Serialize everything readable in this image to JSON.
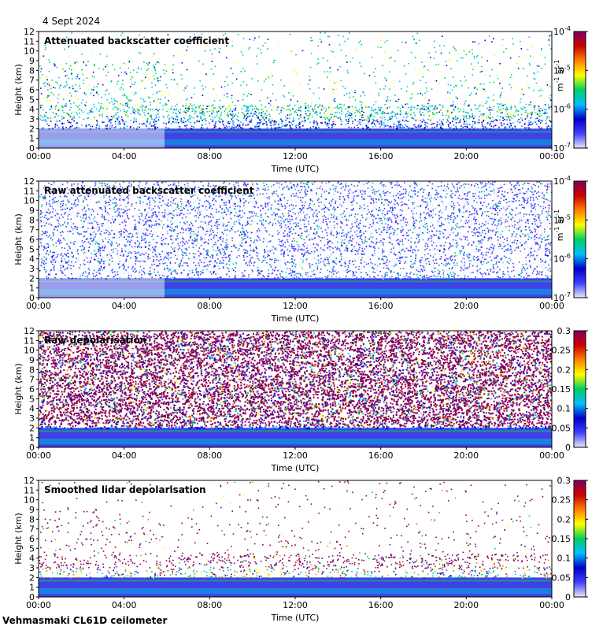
{
  "header": {
    "date": "4 Sept 2024"
  },
  "footer": {
    "site": "Vehmasmaki CL61D ceilometer"
  },
  "chart_data": [
    {
      "type": "heatmap",
      "title": "Attenuated backscatter coefficient",
      "xlabel": "Time (UTC)",
      "ylabel": "Height (km)",
      "x_ticks": [
        "00:00",
        "04:00",
        "08:00",
        "12:00",
        "16:00",
        "20:00",
        "00:00"
      ],
      "y_ticks": [
        "0",
        "1",
        "2",
        "3",
        "4",
        "5",
        "6",
        "7",
        "8",
        "9",
        "10",
        "11",
        "12"
      ],
      "ylim": [
        0,
        12
      ],
      "colorbar": {
        "scale": "log",
        "range": [
          1e-07,
          0.0001
        ],
        "tick_labels": [
          {
            "base": "10",
            "exp": "-7"
          },
          {
            "base": "10",
            "exp": "-6"
          },
          {
            "base": "10",
            "exp": "-5"
          },
          {
            "base": "10",
            "exp": "-4"
          }
        ],
        "unit": {
          "m_exp": "-1",
          "sr_exp": "-1"
        }
      },
      "colormap": [
        "#e8e8f8",
        "#4040ff",
        "#0000cc",
        "#00c0ff",
        "#00d060",
        "#ffff00",
        "#ff8000",
        "#cc0000",
        "#800060"
      ],
      "features": {
        "low_layer_km": [
          0.3,
          2.0
        ],
        "signal_density": "sparse",
        "max_height_km": 12
      }
    },
    {
      "type": "heatmap",
      "title": "Raw attenuated backscatter coefficient",
      "xlabel": "Time (UTC)",
      "ylabel": "Height (km)",
      "x_ticks": [
        "00:00",
        "04:00",
        "08:00",
        "12:00",
        "16:00",
        "20:00",
        "00:00"
      ],
      "y_ticks": [
        "0",
        "1",
        "2",
        "3",
        "4",
        "5",
        "6",
        "7",
        "8",
        "9",
        "10",
        "11",
        "12"
      ],
      "ylim": [
        0,
        12
      ],
      "colorbar": {
        "scale": "log",
        "range": [
          1e-07,
          0.0001
        ],
        "tick_labels": [
          {
            "base": "10",
            "exp": "-7"
          },
          {
            "base": "10",
            "exp": "-6"
          },
          {
            "base": "10",
            "exp": "-5"
          },
          {
            "base": "10",
            "exp": "-4"
          }
        ],
        "unit": {
          "m_exp": "-1",
          "sr_exp": "-1"
        }
      },
      "colormap": [
        "#e8e8f8",
        "#4040ff",
        "#0000cc",
        "#00c0ff",
        "#00d060",
        "#ffff00",
        "#ff8000",
        "#cc0000",
        "#800060"
      ],
      "features": {
        "low_layer_km": [
          0.3,
          2.0
        ],
        "signal_density": "dense",
        "max_height_km": 12
      }
    },
    {
      "type": "heatmap",
      "title": "Raw depolarisation",
      "xlabel": "Time (UTC)",
      "ylabel": "Height (km)",
      "x_ticks": [
        "00:00",
        "04:00",
        "08:00",
        "12:00",
        "16:00",
        "20:00",
        "00:00"
      ],
      "y_ticks": [
        "0",
        "1",
        "2",
        "3",
        "4",
        "5",
        "6",
        "7",
        "8",
        "9",
        "10",
        "11",
        "12"
      ],
      "ylim": [
        0,
        12
      ],
      "colorbar": {
        "scale": "linear",
        "range": [
          0,
          0.3
        ],
        "tick_labels": [
          "0",
          "0.05",
          "0.1",
          "0.15",
          "0.2",
          "0.25",
          "0.3"
        ]
      },
      "colormap": [
        "#e8e8f8",
        "#4040ff",
        "#0000cc",
        "#00c0ff",
        "#00d060",
        "#ffff00",
        "#ff8000",
        "#cc0000",
        "#800060"
      ],
      "features": {
        "low_layer_km": [
          0.3,
          2.0
        ],
        "signal_density": "saturated",
        "max_height_km": 12
      }
    },
    {
      "type": "heatmap",
      "title": "Smoothed lidar depolarisation",
      "xlabel": "Time (UTC)",
      "ylabel": "Height (km)",
      "x_ticks": [
        "00:00",
        "04:00",
        "08:00",
        "12:00",
        "16:00",
        "20:00",
        "00:00"
      ],
      "y_ticks": [
        "0",
        "1",
        "2",
        "3",
        "4",
        "5",
        "6",
        "7",
        "8",
        "9",
        "10",
        "11",
        "12"
      ],
      "ylim": [
        0,
        12
      ],
      "colorbar": {
        "scale": "linear",
        "range": [
          0,
          0.3
        ],
        "tick_labels": [
          "0",
          "0.05",
          "0.1",
          "0.15",
          "0.2",
          "0.25",
          "0.3"
        ]
      },
      "colormap": [
        "#e8e8f8",
        "#4040ff",
        "#0000cc",
        "#00c0ff",
        "#00d060",
        "#ffff00",
        "#ff8000",
        "#cc0000",
        "#800060"
      ],
      "features": {
        "low_layer_km": [
          0.3,
          2.0
        ],
        "signal_density": "scattered",
        "max_height_km": 12
      }
    }
  ]
}
